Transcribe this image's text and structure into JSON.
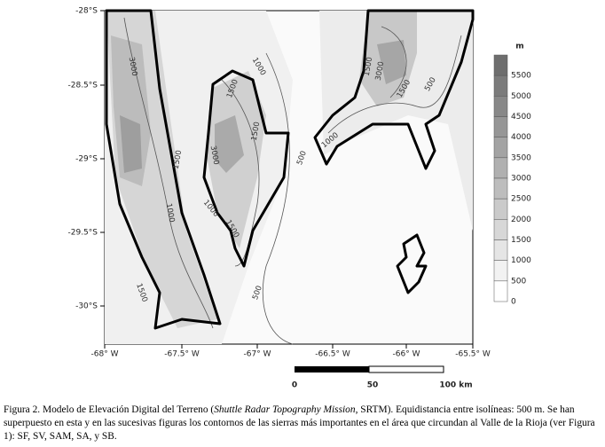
{
  "axes": {
    "lat_labels": [
      "-28°S",
      "-28.5°S",
      "-29°S",
      "-29.5°S",
      "-30°S"
    ],
    "lon_labels": [
      "-68° W",
      "-67.5° W",
      "-67° W",
      "-66.5° W",
      "-66° W",
      "-65.5° W"
    ]
  },
  "legend": {
    "unit": "m",
    "labels": [
      "5500",
      "5000",
      "4500",
      "4000",
      "3500",
      "3000",
      "2500",
      "2000",
      "1500",
      "1000",
      "500",
      "0"
    ]
  },
  "contour_labels": [
    "3000",
    "1000",
    "1500",
    "3000",
    "1500",
    "500",
    "1500",
    "1500",
    "1000",
    "500",
    "3000",
    "1500",
    "1000",
    "1000",
    "1500",
    "500",
    "1500"
  ],
  "scale_bar": {
    "labels": [
      "0",
      "50",
      "100 km"
    ]
  },
  "caption": {
    "prefix": "Figura 2. Modelo de Elevación Digital del Terreno (",
    "italic": "Shuttle Radar Topography Mission",
    "rest": ", SRTM). Equidistancia entre isolíneas: 500 m. Se han superpuesto en esta y en las sucesivas figuras los contornos de las sierras más importantes en el área que circundan al Valle de la Rioja (ver Figura 1): SF, SV, SAM, SA, y SB."
  }
}
